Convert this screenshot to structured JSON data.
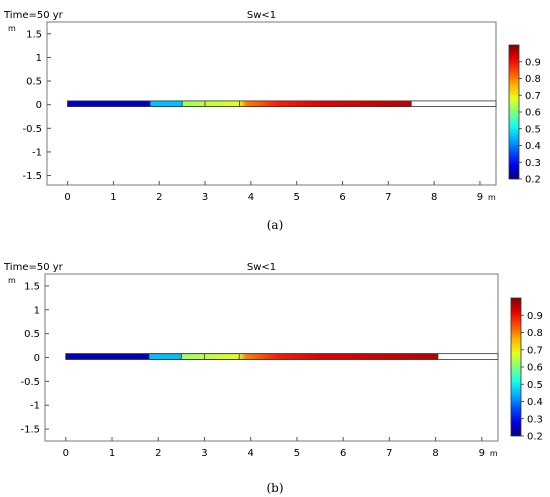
{
  "chart_data": [
    {
      "type": "heatmap",
      "panel_label": "(a)",
      "time_label": "Time=50 yr",
      "title": "Sw<1",
      "x_unit": "m",
      "y_unit": "m",
      "xlim": [
        -0.45,
        9.35
      ],
      "ylim": [
        -1.7,
        1.75
      ],
      "x_ticks": [
        0,
        1,
        2,
        3,
        4,
        5,
        6,
        7,
        8,
        9
      ],
      "y_ticks": [
        1.5,
        1,
        0.5,
        0,
        -0.5,
        -1,
        -1.5
      ],
      "y_tick_labels": [
        "1.5",
        "1",
        "0.5",
        "0",
        "-0.5",
        "-1",
        "-1.5"
      ],
      "domain": {
        "x_start": 0,
        "x_end": 9.35,
        "y_bottom": -0.04,
        "y_top": 0.08
      },
      "partitions": [
        1.8,
        2.5,
        3.0,
        3.75
      ],
      "profile": [
        {
          "x": 0,
          "sw": 0.25
        },
        {
          "x": 1.8,
          "sw": 0.25
        },
        {
          "x": 1.8,
          "sw": 0.45
        },
        {
          "x": 2.5,
          "sw": 0.45
        },
        {
          "x": 2.5,
          "sw": 0.62
        },
        {
          "x": 3.75,
          "sw": 0.68
        },
        {
          "x": 3.9,
          "sw": 0.8
        },
        {
          "x": 4.6,
          "sw": 0.88
        },
        {
          "x": 5.5,
          "sw": 0.92
        },
        {
          "x": 7.5,
          "sw": 0.95
        }
      ],
      "front_x": 7.5,
      "colorbar": {
        "min": 0.2,
        "max": 1.0,
        "ticks": [
          0.9,
          0.8,
          0.7,
          0.6,
          0.5,
          0.4,
          0.3,
          0.2
        ],
        "tick_labels": [
          "0.9",
          "0.8",
          "0.7",
          "0.6",
          "0.5",
          "0.4",
          "0.3",
          "0.2"
        ]
      }
    },
    {
      "type": "heatmap",
      "panel_label": "(b)",
      "time_label": "Time=50 yr",
      "title": "Sw<1",
      "x_unit": "m",
      "y_unit": "m",
      "xlim": [
        -0.45,
        9.35
      ],
      "ylim": [
        -1.75,
        1.75
      ],
      "x_ticks": [
        0,
        1,
        2,
        3,
        4,
        5,
        6,
        7,
        8,
        9
      ],
      "y_ticks": [
        1.5,
        1,
        0.5,
        0,
        -0.5,
        -1,
        -1.5
      ],
      "y_tick_labels": [
        "1.5",
        "1",
        "0.5",
        "0",
        "-0.5",
        "-1",
        "-1.5"
      ],
      "domain": {
        "x_start": 0,
        "x_end": 9.35,
        "y_bottom": -0.04,
        "y_top": 0.08
      },
      "partitions": [
        1.8,
        2.5,
        3.0,
        3.75
      ],
      "profile": [
        {
          "x": 0,
          "sw": 0.25
        },
        {
          "x": 1.8,
          "sw": 0.25
        },
        {
          "x": 1.8,
          "sw": 0.45
        },
        {
          "x": 2.5,
          "sw": 0.45
        },
        {
          "x": 2.5,
          "sw": 0.62
        },
        {
          "x": 3.75,
          "sw": 0.68
        },
        {
          "x": 3.9,
          "sw": 0.8
        },
        {
          "x": 4.6,
          "sw": 0.88
        },
        {
          "x": 5.5,
          "sw": 0.92
        },
        {
          "x": 8.05,
          "sw": 0.95
        }
      ],
      "front_x": 8.05,
      "colorbar": {
        "min": 0.2,
        "max": 1.0,
        "ticks": [
          0.9,
          0.8,
          0.7,
          0.6,
          0.5,
          0.4,
          0.3,
          0.2
        ],
        "tick_labels": [
          "0.9",
          "0.8",
          "0.7",
          "0.6",
          "0.5",
          "0.4",
          "0.3",
          "0.2"
        ]
      }
    }
  ]
}
